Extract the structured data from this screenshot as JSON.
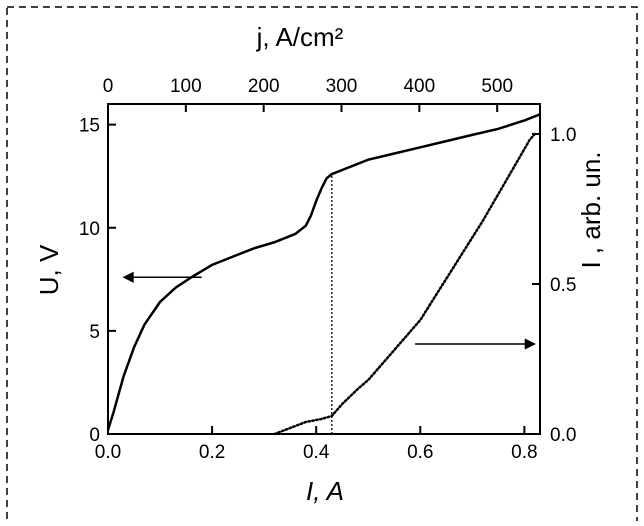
{
  "chart_data": {
    "type": "line",
    "title": "",
    "xlabel": "I, A",
    "ylabel_left": "U, V",
    "ylabel_right": "I , arb. un.",
    "x2label": "j, A/cm²",
    "xlim": [
      0.0,
      0.83
    ],
    "ylim_left": [
      0,
      16
    ],
    "ylim_right": [
      0,
      1.1
    ],
    "x2lim": [
      0,
      555
    ],
    "xticks": [
      "0.0",
      "0.2",
      "0.4",
      "0.6",
      "0.8"
    ],
    "yticks_left": [
      "0",
      "5",
      "10",
      "15"
    ],
    "yticks_right": [
      "0.0",
      "0.5",
      "1.0"
    ],
    "x2ticks": [
      "0",
      "100",
      "200",
      "300",
      "400",
      "500"
    ],
    "grid": false,
    "series": [
      {
        "axis": "left",
        "style": "solid",
        "x": [
          0.0,
          0.01,
          0.02,
          0.03,
          0.05,
          0.07,
          0.1,
          0.13,
          0.16,
          0.2,
          0.24,
          0.28,
          0.32,
          0.36,
          0.38,
          0.39,
          0.4,
          0.41,
          0.42,
          0.43,
          0.45,
          0.5,
          0.55,
          0.6,
          0.65,
          0.7,
          0.75,
          0.8,
          0.83
        ],
        "y": [
          0.2,
          1.0,
          1.9,
          2.8,
          4.2,
          5.3,
          6.4,
          7.1,
          7.6,
          8.2,
          8.6,
          9.0,
          9.3,
          9.7,
          10.1,
          10.6,
          11.3,
          11.9,
          12.4,
          12.6,
          12.8,
          13.3,
          13.6,
          13.9,
          14.2,
          14.5,
          14.8,
          15.2,
          15.5
        ]
      },
      {
        "axis": "right",
        "style": "dotted",
        "x": [
          0.32,
          0.35,
          0.38,
          0.41,
          0.43,
          0.45,
          0.48,
          0.5,
          0.53,
          0.56,
          0.6,
          0.64,
          0.68,
          0.72,
          0.76,
          0.79,
          0.81,
          0.82
        ],
        "y": [
          0.0,
          0.02,
          0.04,
          0.05,
          0.06,
          0.1,
          0.15,
          0.18,
          0.24,
          0.3,
          0.38,
          0.49,
          0.6,
          0.71,
          0.83,
          0.92,
          0.98,
          1.0
        ]
      }
    ],
    "annotations": {
      "left_arrow": {
        "target_axis": "left",
        "x_from": 0.18,
        "x_to": 0.03,
        "y": 7.6
      },
      "right_arrow": {
        "target_axis": "right",
        "x_from": 0.59,
        "x_to": 0.82,
        "y_right": 0.3
      },
      "vline": {
        "x": 0.43,
        "y_from": 0,
        "y_to": 12.6
      }
    }
  }
}
